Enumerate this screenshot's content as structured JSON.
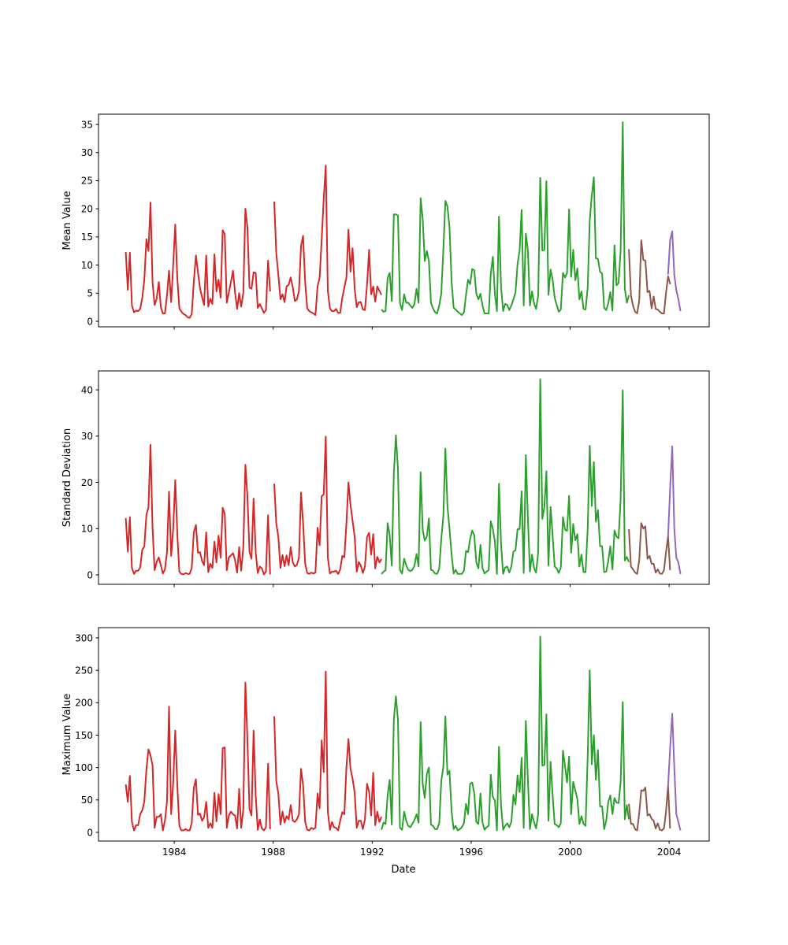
{
  "chart_data": {
    "type": "line",
    "xlabel": "Date",
    "xlim": [
      1980.94,
      2005.62
    ],
    "xticks": [
      1984,
      1988,
      1992,
      1996,
      2000,
      2004
    ],
    "grid": false,
    "legend": "none",
    "subplots": [
      {
        "ylabel": "Mean Value",
        "ylim": [
          -0.98,
          36.82
        ],
        "yticks": [
          0,
          5,
          10,
          15,
          20,
          25,
          30,
          35
        ],
        "series": [
          {
            "color": "#d62728",
            "start": "1982-01",
            "values": [
              12.3,
              5.6,
              12.2,
              2.8,
              1.6,
              1.9,
              1.8,
              2.2,
              4.1,
              7.3,
              14.6,
              12.5,
              21.1,
              6.9,
              2.9,
              4,
              7,
              2.5,
              1.4,
              1.4,
              4.6,
              9,
              3.4,
              10,
              17.2,
              7.7,
              2.3,
              1.7,
              1.3,
              1.1,
              0.7,
              0.6,
              1.3,
              6.9,
              11.7,
              8.7,
              5.9,
              4.3,
              2.9,
              11.7,
              2.6,
              4,
              3.1,
              11.9,
              5.3,
              7.4,
              4.2,
              16.2,
              15.5,
              3.3,
              5.1,
              7,
              9,
              5.1,
              2.2,
              5,
              2.6,
              5.1,
              20,
              16.7,
              6,
              5.8,
              8.7,
              8.6,
              2.4,
              3.1,
              2.3,
              1.5,
              2,
              10.8,
              5.3,
              null,
              21.3,
              12.1,
              8.3,
              3.9,
              4.8,
              3.4,
              6.2,
              6.5,
              7.8,
              6,
              3.6,
              3.9,
              5.4,
              13.4,
              15.2,
              6.9,
              2.3,
              1.8,
              1.6,
              1.4,
              1.1,
              6.2,
              7.8,
              14.4,
              21.8,
              27.7,
              5.4,
              2.3,
              1.8,
              1.8,
              2.2,
              1.5,
              1.5,
              4.2,
              6,
              7.8,
              16.3,
              8.8,
              13,
              5.8,
              2.5,
              3.4,
              3.4,
              2.1,
              2,
              6.5,
              12.7,
              4.8,
              6.2,
              3.5,
              6.2,
              5.4,
              4.7
            ]
          },
          {
            "color": "#2ca02c",
            "start": "1992-05",
            "values": [
              2.1,
              1.7,
              1.8,
              7.7,
              8.6,
              3.6,
              19,
              19,
              18.8,
              3.2,
              2,
              4.8,
              3.3,
              3.3,
              2.8,
              2.4,
              3.1,
              5.8,
              3.3,
              21.9,
              18.2,
              10.7,
              12.5,
              10.7,
              3.3,
              2.3,
              1.6,
              1.4,
              2.8,
              4.9,
              12.6,
              21.4,
              20.4,
              16.8,
              7,
              2.4,
              2.1,
              1.7,
              1.4,
              1.1,
              1.6,
              4.7,
              7.4,
              6.6,
              9.3,
              9.1,
              4.9,
              3.9,
              4.9,
              2.8,
              1.4,
              1.4,
              1.4,
              8.4,
              11.5,
              4.9,
              1.8,
              18.6,
              6,
              1.8,
              3.1,
              2.9,
              2,
              2.8,
              3.9,
              5.1,
              10.2,
              12.6,
              19.8,
              2.8,
              15.6,
              12.6,
              2.8,
              5.3,
              3.2,
              2.2,
              4.6,
              25.5,
              12.6,
              12.7,
              24.9,
              4.7,
              9.2,
              7.4,
              4.2,
              2.9,
              1.7,
              2.1,
              8.6,
              7.8,
              8.6,
              19.9,
              7.9,
              12.7,
              7.3,
              9.4,
              3.9,
              5.3,
              2.2,
              2.1,
              6,
              17.9,
              22.4,
              25.6,
              11.2,
              11.1,
              8.8,
              8.5,
              2.4,
              2,
              3.2,
              5.2,
              1.9,
              13.5,
              6.4,
              6.8,
              12.6,
              35.4,
              5.8,
              3.3,
              4.6
            ]
          },
          {
            "color": "#8c564b",
            "start": "2002-05",
            "values": [
              12.8,
              4.6,
              2.8,
              1.7,
              1.4,
              3.7,
              14.4,
              10.9,
              10.8,
              5.2,
              5.4,
              2.3,
              4.4,
              2.2,
              2.1,
              1.7,
              1.4,
              1.4,
              5.1,
              8,
              6.6
            ]
          },
          {
            "color": "#9467bd",
            "start": "2003-12",
            "values": [
              8.3,
              14.4,
              16,
              8.3,
              5.5,
              3.9,
              1.8
            ]
          }
        ]
      },
      {
        "ylabel": "Standard Deviation",
        "ylim": [
          -2.04,
          44.09
        ],
        "yticks": [
          0,
          10,
          20,
          30,
          40
        ],
        "series": [
          {
            "color": "#d62728",
            "start": "1982-01",
            "values": [
              12.3,
              5,
              12.5,
              1.5,
              0.2,
              0.9,
              0.9,
              1.6,
              5.4,
              6.1,
              13,
              14.6,
              28.1,
              10,
              1,
              2.8,
              3.8,
              2.1,
              0.3,
              1.2,
              4.9,
              18,
              4.1,
              10,
              20.5,
              8.9,
              0.7,
              0.2,
              0.1,
              0.4,
              0.2,
              0.2,
              1.5,
              9.2,
              10.8,
              4.8,
              4.9,
              3,
              2.1,
              9.2,
              0.6,
              2.4,
              1.5,
              7.2,
              2.7,
              8.5,
              3.7,
              14.5,
              13.2,
              1,
              3.8,
              4.2,
              4.7,
              3.2,
              0.5,
              6,
              0.9,
              6.1,
              23.8,
              16.9,
              5,
              3.5,
              16.5,
              4.9,
              0.4,
              1.8,
              1.4,
              0.1,
              0.7,
              12.9,
              0.1,
              null,
              19.7,
              11.1,
              8.3,
              1.5,
              4.3,
              1.9,
              4.2,
              2.1,
              6,
              2.7,
              1.8,
              2.2,
              3.7,
              17.8,
              11.2,
              2.4,
              0.4,
              0.2,
              0.5,
              0.3,
              0.5,
              10.2,
              6.4,
              17,
              17.4,
              29.9,
              3.8,
              0.3,
              0.7,
              0.7,
              0.9,
              0.2,
              1.2,
              4.1,
              3.8,
              11.1,
              20,
              15.1,
              11.7,
              8.2,
              0.7,
              2.8,
              2,
              0.4,
              1.8,
              8.2,
              9.1,
              4.4,
              8.8,
              1.4,
              3.9,
              2.7,
              3.4
            ]
          },
          {
            "color": "#2ca02c",
            "start": "1992-05",
            "values": [
              0.2,
              0.7,
              1,
              11.2,
              8.6,
              2,
              22,
              30.2,
              23,
              1.1,
              0.3,
              3.5,
              2.1,
              1.1,
              0.8,
              1.1,
              2,
              4.5,
              1.8,
              22.2,
              9.8,
              7.4,
              8.3,
              12.2,
              1.1,
              0.9,
              0.3,
              0.2,
              1.4,
              7.8,
              12.6,
              27.3,
              14.9,
              10,
              4.4,
              0.3,
              1.1,
              0.2,
              0.2,
              0.2,
              0.9,
              5.2,
              4.9,
              7.8,
              9.6,
              8.6,
              2.7,
              1.4,
              6.5,
              1.5,
              0.3,
              0.7,
              1.1,
              11.6,
              10,
              7.2,
              0.2,
              19.7,
              6.6,
              0.2,
              1.6,
              1.8,
              0.5,
              1.8,
              5.1,
              5.3,
              9.9,
              9.9,
              18.1,
              0.4,
              25.9,
              12.3,
              0.7,
              4.4,
              1.5,
              0.5,
              4.9,
              42.3,
              12.1,
              14.6,
              22.4,
              2,
              14.7,
              8.6,
              1.8,
              1.4,
              0.4,
              1.6,
              12.5,
              9.8,
              9.5,
              17.1,
              4.8,
              11,
              7.5,
              8.8,
              1.8,
              4.4,
              0.6,
              0.6,
              10,
              27.9,
              14.9,
              24.4,
              11.5,
              14,
              6.2,
              6.2,
              0.6,
              0.7,
              3,
              6.2,
              1.2,
              9.6,
              8.3,
              7.9,
              16.3,
              39.9,
              3.1,
              3.9,
              2.8
            ]
          },
          {
            "color": "#8c564b",
            "start": "2002-05",
            "values": [
              9.9,
              1.8,
              1.2,
              0.5,
              0.2,
              3.2,
              11.2,
              10,
              10.5,
              3.5,
              4.1,
              2.4,
              2.4,
              0.5,
              1.2,
              0.3,
              0.2,
              1,
              4.9,
              8.3,
              1
            ]
          },
          {
            "color": "#9467bd",
            "start": "2003-12",
            "values": [
              8.3,
              18.6,
              27.8,
              10,
              3.7,
              2.7,
              0.2
            ]
          }
        ]
      },
      {
        "ylabel": "Maximum Value",
        "ylim": [
          -13.4,
          315.8
        ],
        "yticks": [
          0,
          50,
          100,
          150,
          200,
          250,
          300
        ],
        "series": [
          {
            "color": "#d62728",
            "start": "1982-01",
            "values": [
              74,
              47,
              87,
              16,
              3,
              11,
              11,
              28,
              34,
              47,
              97,
              128,
              119,
              103,
              7,
              24,
              24,
              28,
              3,
              18,
              47,
              194,
              28,
              77,
              157,
              73,
              10,
              3,
              3,
              5,
              3,
              3,
              14,
              68,
              82,
              27,
              29,
              18,
              23,
              47,
              7,
              14,
              7,
              61,
              17,
              59,
              28,
              130,
              131,
              7,
              26,
              32,
              28,
              26,
              6,
              67,
              7,
              36,
              231,
              142,
              36,
              26,
              157,
              57,
              4,
              20,
              6,
              3,
              8,
              106,
              5,
              null,
              179,
              79,
              60,
              12,
              32,
              15,
              25,
              20,
              42,
              18,
              16,
              20,
              28,
              98,
              73,
              16,
              4,
              3,
              7,
              5,
              7,
              60,
              37,
              142,
              93,
              248,
              32,
              4,
              16,
              8,
              7,
              3,
              18,
              31,
              28,
              100,
              144,
              98,
              83,
              61,
              7,
              18,
              18,
              5,
              20,
              75,
              63,
              26,
              92,
              11,
              32,
              16,
              24
            ]
          },
          {
            "color": "#2ca02c",
            "start": "1992-05",
            "values": [
              4,
              15,
              13,
              57,
              81,
              12,
              174,
              210,
              174,
              7,
              4,
              32,
              18,
              10,
              8,
              13,
              19,
              28,
              15,
              170,
              75,
              53,
              90,
              100,
              12,
              10,
              5,
              5,
              14,
              79,
              101,
              179,
              89,
              95,
              32,
              5,
              10,
              3,
              5,
              8,
              14,
              44,
              28,
              75,
              77,
              61,
              16,
              13,
              60,
              15,
              4,
              8,
              10,
              89,
              55,
              49,
              3,
              132,
              40,
              4,
              10,
              14,
              8,
              16,
              58,
              43,
              88,
              62,
              115,
              7,
              172,
              81,
              5,
              28,
              16,
              6,
              28,
              302,
              103,
              104,
              182,
              18,
              109,
              57,
              13,
              11,
              8,
              14,
              126,
              103,
              77,
              117,
              28,
              78,
              65,
              51,
              13,
              25,
              13,
              10,
              117,
              250,
              105,
              150,
              81,
              127,
              40,
              40,
              5,
              18,
              47,
              57,
              28,
              53,
              46,
              45,
              77,
              201,
              20,
              42,
              20
            ]
          },
          {
            "color": "#8c564b",
            "start": "2002-05",
            "values": [
              44,
              13,
              13,
              5,
              3,
              30,
              65,
              64,
              69,
              26,
              28,
              21,
              18,
              6,
              14,
              4,
              3,
              6,
              32,
              71,
              6
            ]
          },
          {
            "color": "#9467bd",
            "start": "2003-12",
            "values": [
              71,
              130,
              183,
              100,
              28,
              16,
              3
            ]
          }
        ]
      }
    ]
  }
}
